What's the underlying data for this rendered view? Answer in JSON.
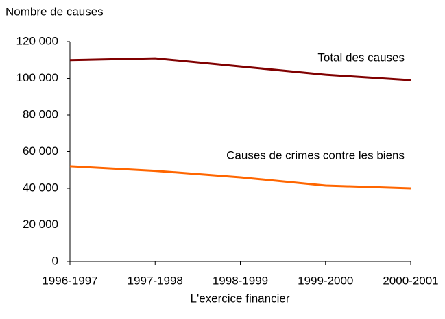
{
  "chart_data": {
    "type": "line",
    "ylabel": "Nombre de causes",
    "xlabel": "L'exercice financier",
    "categories": [
      "1996-1997",
      "1997-1998",
      "1998-1999",
      "1999-2000",
      "2000-2001"
    ],
    "series": [
      {
        "name": "Total des causes",
        "color": "#800000",
        "values": [
          110000,
          111000,
          106500,
          102000,
          99000
        ]
      },
      {
        "name": "Causes de crimes contre les biens",
        "color": "#ff6600",
        "values": [
          52000,
          49500,
          46000,
          41500,
          40000
        ]
      }
    ],
    "ylim": [
      0,
      120000
    ],
    "yticks": [
      {
        "value": 0,
        "label": "0"
      },
      {
        "value": 20000,
        "label": "20 000"
      },
      {
        "value": 40000,
        "label": "40 000"
      },
      {
        "value": 60000,
        "label": "60 000"
      },
      {
        "value": 80000,
        "label": "80 000"
      },
      {
        "value": 100000,
        "label": "100 000"
      },
      {
        "value": 120000,
        "label": "120 000"
      }
    ],
    "grid": false
  }
}
